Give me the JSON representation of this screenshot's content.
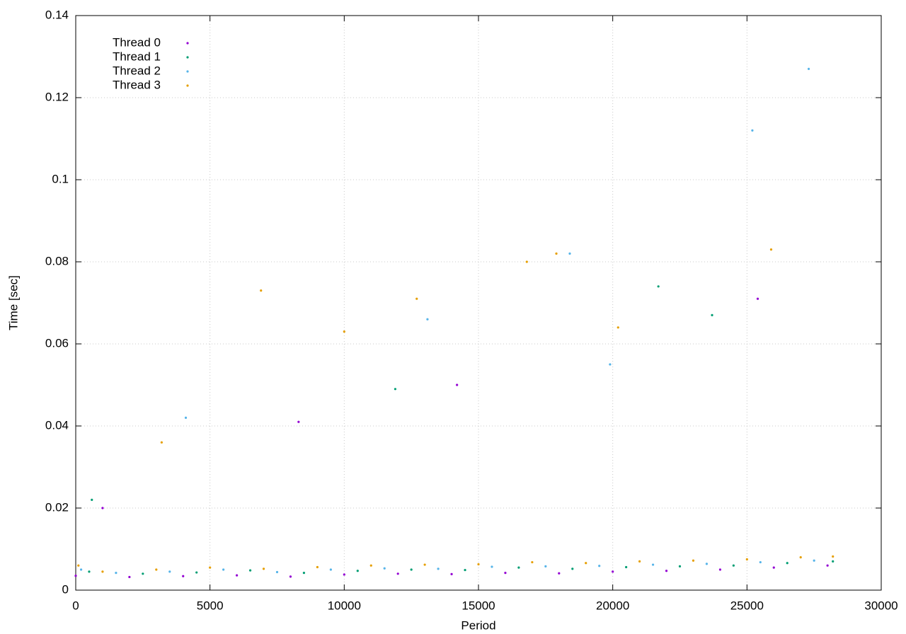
{
  "chart_data": {
    "type": "scatter",
    "xlabel": "Period",
    "ylabel": "Time [sec]",
    "xlim": [
      0,
      30000
    ],
    "xticks": [
      0,
      5000,
      10000,
      15000,
      20000,
      25000,
      30000
    ],
    "ylim": [
      0,
      0.14
    ],
    "yticks": [
      0,
      0.02,
      0.04,
      0.06,
      0.08,
      0.1,
      0.12,
      0.14
    ],
    "grid": true,
    "legend": "upper-left",
    "series": [
      {
        "name": "Thread 0",
        "color": "#9400d3",
        "x": [
          0,
          2000,
          4000,
          6000,
          8000,
          10000,
          12000,
          14000,
          16000,
          18000,
          20000,
          22000,
          24000,
          26000,
          28000,
          1000,
          8300,
          14200,
          25400
        ],
        "values": [
          0.0035,
          0.0032,
          0.0034,
          0.0036,
          0.0033,
          0.0038,
          0.004,
          0.0039,
          0.0042,
          0.0041,
          0.0045,
          0.0047,
          0.005,
          0.0055,
          0.006,
          0.02,
          0.041,
          0.05,
          0.071
        ]
      },
      {
        "name": "Thread 1",
        "color": "#009e73",
        "x": [
          500,
          2500,
          4500,
          6500,
          8500,
          10500,
          12500,
          14500,
          16500,
          18500,
          20500,
          22500,
          24500,
          26500,
          28200,
          600,
          11900,
          21700,
          23700
        ],
        "values": [
          0.0045,
          0.004,
          0.0043,
          0.0048,
          0.0042,
          0.0047,
          0.005,
          0.0049,
          0.0055,
          0.0052,
          0.0056,
          0.0058,
          0.006,
          0.0066,
          0.007,
          0.022,
          0.049,
          0.074,
          0.067
        ]
      },
      {
        "name": "Thread 2",
        "color": "#56b4e9",
        "x": [
          200,
          1500,
          3500,
          5500,
          7500,
          9500,
          11500,
          13500,
          15500,
          17500,
          19500,
          21500,
          23500,
          25500,
          27500,
          4100,
          13100,
          18400,
          19900,
          25200,
          27300
        ],
        "values": [
          0.005,
          0.0042,
          0.0045,
          0.005,
          0.0044,
          0.005,
          0.0053,
          0.0052,
          0.0057,
          0.0058,
          0.0059,
          0.0062,
          0.0064,
          0.0068,
          0.0072,
          0.042,
          0.066,
          0.082,
          0.055,
          0.112,
          0.127
        ]
      },
      {
        "name": "Thread 3",
        "color": "#e69f00",
        "x": [
          100,
          1000,
          3000,
          5000,
          7000,
          9000,
          11000,
          13000,
          15000,
          17000,
          19000,
          21000,
          23000,
          25000,
          27000,
          28200,
          3200,
          6900,
          10000,
          12700,
          16800,
          17900,
          20200,
          25900
        ],
        "values": [
          0.006,
          0.0045,
          0.005,
          0.0055,
          0.0052,
          0.0056,
          0.006,
          0.0062,
          0.0063,
          0.0068,
          0.0066,
          0.007,
          0.0072,
          0.0075,
          0.008,
          0.0082,
          0.036,
          0.073,
          0.063,
          0.071,
          0.08,
          0.082,
          0.064,
          0.083
        ]
      }
    ]
  }
}
